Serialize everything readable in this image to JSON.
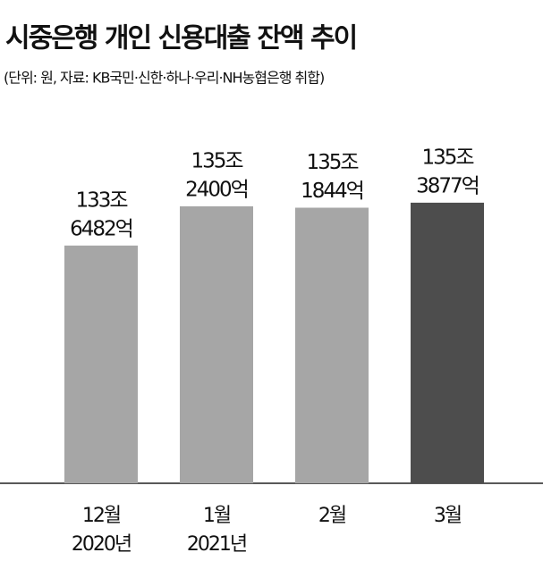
{
  "chart_data": {
    "type": "bar",
    "title": "시중은행 개인 신용대출 잔액 추이",
    "subtitle": "(단위: 원, 자료: KB국민·신한·하나·우리·NH농협은행 취합)",
    "categories": [
      [
        "12월",
        "2020년"
      ],
      [
        "1월",
        "2021년"
      ],
      [
        "2월"
      ],
      [
        "3월"
      ]
    ],
    "values": [
      1336482,
      1352400,
      1351844,
      1353877
    ],
    "value_labels": [
      [
        "133조",
        "6482억"
      ],
      [
        "135조",
        "2400억"
      ],
      [
        "135조",
        "1844억"
      ],
      [
        "135조",
        "3877억"
      ]
    ],
    "colors": [
      "#a6a6a6",
      "#a6a6a6",
      "#a6a6a6",
      "#4d4d4d"
    ],
    "ylim": [
      1240000,
      1360000
    ]
  }
}
